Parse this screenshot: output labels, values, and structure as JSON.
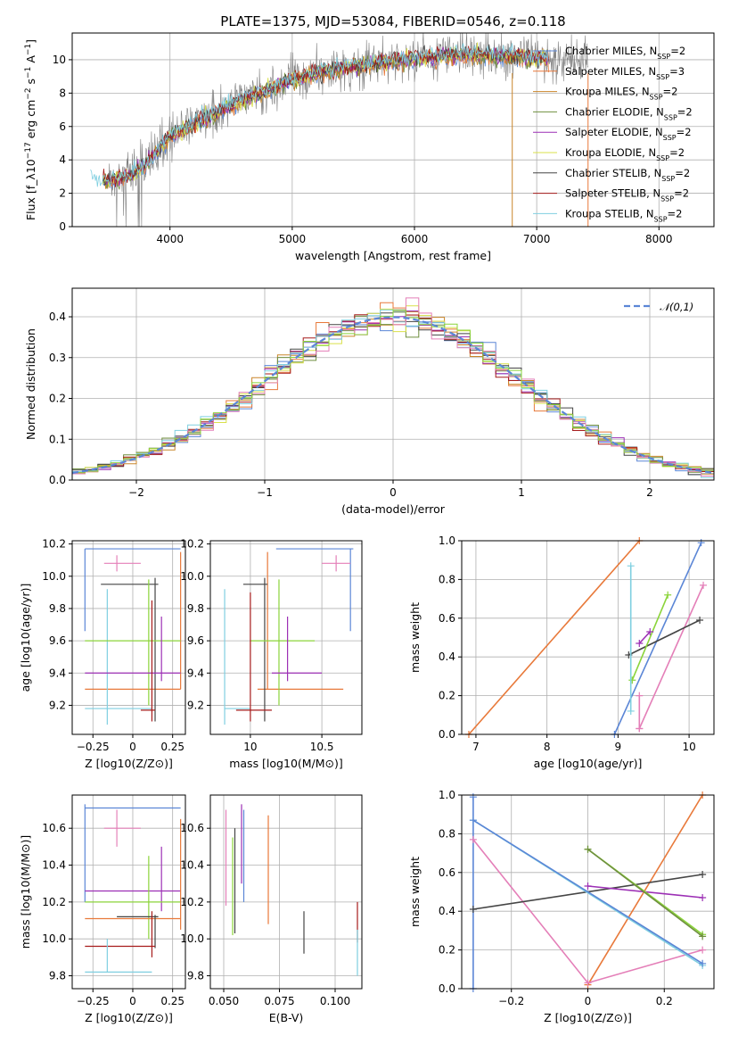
{
  "title": "PLATE=1375, MJD=53084, FIBERID=0546, z=0.118",
  "colors": {
    "Chabrier MILES": "#5b86d6",
    "Salpeter MILES": "#e8793a",
    "Kroupa MILES": "#c9852a",
    "Chabrier ELODIE": "#6f8f3f",
    "Salpeter ELODIE": "#9c2fb5",
    "Kroupa ELODIE": "#d9e04a",
    "Chabrier STELIB": "#454545",
    "Salpeter STELIB": "#a61b1b",
    "Kroupa STELIB": "#7fcfe0",
    "pink": "#e47fb8",
    "green": "#8bd43a",
    "normal_curve": "#5b86d6"
  },
  "chart_data": [
    {
      "id": "spectrum",
      "type": "line",
      "xlabel": "wavelength [Angstrom, rest frame]",
      "ylabel": "Flux [f_λ10^-17 erg cm^-2 s^-1 A^-1]",
      "xlim": [
        3200,
        8450
      ],
      "ylim": [
        0,
        11.6
      ],
      "xticks": [
        4000,
        5000,
        6000,
        7000,
        8000
      ],
      "yticks": [
        0,
        2,
        4,
        6,
        8,
        10
      ],
      "legend_position": "top-right",
      "legend": [
        {
          "name": "Chabrier MILES",
          "nssp": "2"
        },
        {
          "name": "Salpeter MILES",
          "nssp": "3"
        },
        {
          "name": "Kroupa MILES",
          "nssp": "2"
        },
        {
          "name": "Chabrier ELODIE",
          "nssp": "2"
        },
        {
          "name": "Salpeter ELODIE",
          "nssp": "2"
        },
        {
          "name": "Kroupa ELODIE",
          "nssp": "2"
        },
        {
          "name": "Chabrier STELIB",
          "nssp": "2"
        },
        {
          "name": "Salpeter STELIB",
          "nssp": "2"
        },
        {
          "name": "Kroupa STELIB",
          "nssp": "2"
        }
      ],
      "continuum": [
        [
          3350,
          2.9
        ],
        [
          3500,
          2.7
        ],
        [
          3650,
          3.0
        ],
        [
          3800,
          3.7
        ],
        [
          3900,
          4.6
        ],
        [
          4000,
          5.4
        ],
        [
          4200,
          6.2
        ],
        [
          4400,
          6.9
        ],
        [
          4600,
          7.6
        ],
        [
          4800,
          8.2
        ],
        [
          5000,
          8.8
        ],
        [
          5200,
          9.2
        ],
        [
          5400,
          9.5
        ],
        [
          5600,
          9.7
        ],
        [
          5800,
          9.9
        ],
        [
          6000,
          10.1
        ],
        [
          6200,
          10.2
        ],
        [
          6400,
          10.3
        ],
        [
          6600,
          10.3
        ],
        [
          6800,
          10.2
        ],
        [
          7000,
          10.1
        ],
        [
          7200,
          10.0
        ],
        [
          7420,
          10.0
        ]
      ],
      "model_end": 7100,
      "data_range": [
        3500,
        7420
      ]
    },
    {
      "id": "residuals",
      "type": "histogram",
      "xlabel": "(data-model)/error",
      "ylabel": "Normed distribution",
      "xlim": [
        -2.5,
        2.5
      ],
      "ylim": [
        0,
        0.47
      ],
      "xticks": [
        -2,
        -1,
        0,
        1,
        2
      ],
      "yticks": [
        0.0,
        0.1,
        0.2,
        0.3,
        0.4
      ],
      "legend": [
        "𝒩(0,1)"
      ],
      "legend_position": "top-right",
      "bin_width": 0.1,
      "bin_start": -2.5
    },
    {
      "id": "age-vs-Z",
      "type": "scatter",
      "xlabel": "Z [log10(Z/Z⊙)]",
      "ylabel": "age [log10(age/yr)]",
      "xlim": [
        -0.38,
        0.33
      ],
      "ylim": [
        9.02,
        10.22
      ],
      "xticks": [
        -0.25,
        0.0,
        0.25
      ],
      "yticks": [
        9.2,
        9.4,
        9.6,
        9.8,
        10.0,
        10.2
      ],
      "points": [
        {
          "c": "#5b86d6",
          "x": -0.3,
          "y": 10.17,
          "xlo": -0.3,
          "xhi": 0.3,
          "ylo": 9.66,
          "yhi": 10.17
        },
        {
          "c": "#e8793a",
          "x": 0.3,
          "y": 9.3,
          "xlo": -0.3,
          "xhi": 0.3,
          "ylo": 9.3,
          "yhi": 10.15
        },
        {
          "c": "#e47fb8",
          "x": -0.1,
          "y": 10.08,
          "xlo": -0.18,
          "xhi": 0.05,
          "ylo": 10.03,
          "yhi": 10.13
        },
        {
          "c": "#454545",
          "x": 0.14,
          "y": 9.95,
          "xlo": -0.2,
          "xhi": 0.16,
          "ylo": 9.1,
          "yhi": 9.99
        },
        {
          "c": "#7fcfe0",
          "x": -0.16,
          "y": 9.18,
          "xlo": -0.3,
          "xhi": 0.12,
          "ylo": 9.08,
          "yhi": 9.92
        },
        {
          "c": "#8bd43a",
          "x": 0.1,
          "y": 9.6,
          "xlo": -0.3,
          "xhi": 0.3,
          "ylo": 9.2,
          "yhi": 9.98
        },
        {
          "c": "#9c2fb5",
          "x": 0.18,
          "y": 9.4,
          "xlo": -0.3,
          "xhi": 0.3,
          "ylo": 9.35,
          "yhi": 9.75
        },
        {
          "c": "#a61b1b",
          "x": 0.12,
          "y": 9.17,
          "xlo": 0.05,
          "xhi": 0.14,
          "ylo": 9.1,
          "yhi": 9.85
        }
      ]
    },
    {
      "id": "age-vs-mass",
      "type": "scatter",
      "xlabel": "mass [log10(M/M⊙)]",
      "ylabel": "",
      "xlim": [
        9.72,
        10.78
      ],
      "ylim": [
        9.02,
        10.22
      ],
      "xticks": [
        10.0,
        10.5
      ],
      "yticks": [
        9.2,
        9.4,
        9.6,
        9.8,
        10.0,
        10.2
      ],
      "points": [
        {
          "c": "#5b86d6",
          "x": 10.7,
          "y": 10.17,
          "xlo": 10.18,
          "xhi": 10.72,
          "ylo": 9.66,
          "yhi": 10.17
        },
        {
          "c": "#e47fb8",
          "x": 10.6,
          "y": 10.08,
          "xlo": 10.5,
          "xhi": 10.7,
          "ylo": 10.03,
          "yhi": 10.13
        },
        {
          "c": "#e8793a",
          "x": 10.12,
          "y": 9.3,
          "xlo": 10.05,
          "xhi": 10.65,
          "ylo": 9.3,
          "yhi": 10.15
        },
        {
          "c": "#454545",
          "x": 10.1,
          "y": 9.95,
          "xlo": 9.95,
          "xhi": 10.12,
          "ylo": 9.1,
          "yhi": 9.99
        },
        {
          "c": "#7fcfe0",
          "x": 9.82,
          "y": 9.18,
          "xlo": 9.82,
          "xhi": 10.0,
          "ylo": 9.08,
          "yhi": 9.92
        },
        {
          "c": "#8bd43a",
          "x": 10.2,
          "y": 9.6,
          "xlo": 10.0,
          "xhi": 10.45,
          "ylo": 9.2,
          "yhi": 9.98
        },
        {
          "c": "#9c2fb5",
          "x": 10.26,
          "y": 9.4,
          "xlo": 10.15,
          "xhi": 10.5,
          "ylo": 9.35,
          "yhi": 9.75
        },
        {
          "c": "#a61b1b",
          "x": 10.0,
          "y": 9.17,
          "xlo": 9.9,
          "xhi": 10.15,
          "ylo": 9.1,
          "yhi": 9.9
        }
      ]
    },
    {
      "id": "weight-vs-age",
      "type": "line",
      "xlabel": "age [log10(age/yr)]",
      "ylabel": "mass weight",
      "xlim": [
        6.8,
        10.35
      ],
      "ylim": [
        0,
        1
      ],
      "xticks": [
        7,
        8,
        9,
        10
      ],
      "yticks": [
        0.0,
        0.2,
        0.4,
        0.6,
        0.8,
        1.0
      ],
      "series": [
        {
          "c": "#e8793a",
          "pts": [
            [
              6.9,
              0.0
            ],
            [
              9.3,
              1.0
            ]
          ]
        },
        {
          "c": "#5b86d6",
          "pts": [
            [
              8.95,
              0.0
            ],
            [
              10.17,
              0.99
            ]
          ]
        },
        {
          "c": "#e47fb8",
          "pts": [
            [
              9.3,
              0.03
            ],
            [
              10.2,
              0.77
            ]
          ]
        },
        {
          "c": "#454545",
          "pts": [
            [
              9.15,
              0.41
            ],
            [
              10.15,
              0.59
            ]
          ]
        },
        {
          "c": "#8bd43a",
          "pts": [
            [
              9.2,
              0.28
            ],
            [
              9.7,
              0.72
            ]
          ]
        },
        {
          "c": "#9c2fb5",
          "pts": [
            [
              9.3,
              0.47
            ],
            [
              9.45,
              0.53
            ]
          ]
        },
        {
          "c": "#7fcfe0",
          "pts": [
            [
              9.18,
              0.12
            ],
            [
              9.18,
              0.87
            ]
          ]
        },
        {
          "c": "#e47fb8",
          "pts": [
            [
              9.3,
              0.03
            ],
            [
              9.3,
              0.2
            ]
          ]
        }
      ]
    },
    {
      "id": "mass-vs-Z",
      "type": "scatter",
      "xlabel": "Z [log10(Z/Z⊙)]",
      "ylabel": "mass [log10(M/M⊙)]",
      "xlim": [
        -0.38,
        0.33
      ],
      "ylim": [
        9.73,
        10.78
      ],
      "xticks": [
        -0.25,
        0.0,
        0.25
      ],
      "yticks": [
        9.8,
        10.0,
        10.2,
        10.4,
        10.6
      ],
      "points": [
        {
          "c": "#5b86d6",
          "x": -0.3,
          "y": 10.71,
          "xlo": -0.3,
          "xhi": 0.3,
          "ylo": 10.2,
          "yhi": 10.73
        },
        {
          "c": "#e47fb8",
          "x": -0.1,
          "y": 10.6,
          "xlo": -0.18,
          "xhi": 0.05,
          "ylo": 10.5,
          "yhi": 10.7
        },
        {
          "c": "#9c2fb5",
          "x": 0.18,
          "y": 10.26,
          "xlo": -0.3,
          "xhi": 0.3,
          "ylo": 10.15,
          "yhi": 10.5
        },
        {
          "c": "#8bd43a",
          "x": 0.1,
          "y": 10.2,
          "xlo": -0.3,
          "xhi": 0.3,
          "ylo": 10.0,
          "yhi": 10.45
        },
        {
          "c": "#e8793a",
          "x": 0.3,
          "y": 10.11,
          "xlo": -0.3,
          "xhi": 0.3,
          "ylo": 10.05,
          "yhi": 10.65
        },
        {
          "c": "#454545",
          "x": 0.14,
          "y": 10.12,
          "xlo": -0.1,
          "xhi": 0.16,
          "ylo": 9.95,
          "yhi": 10.13
        },
        {
          "c": "#a61b1b",
          "x": 0.12,
          "y": 9.96,
          "xlo": -0.3,
          "xhi": 0.14,
          "ylo": 9.9,
          "yhi": 10.15
        },
        {
          "c": "#7fcfe0",
          "x": -0.16,
          "y": 9.82,
          "xlo": -0.3,
          "xhi": 0.12,
          "ylo": 9.82,
          "yhi": 10.0
        }
      ]
    },
    {
      "id": "mass-vs-ebv",
      "type": "scatter",
      "xlabel": "E(B-V)",
      "ylabel": "",
      "xlim": [
        0.044,
        0.112
      ],
      "ylim": [
        9.73,
        10.78
      ],
      "xticks": [
        0.05,
        0.075,
        0.1
      ],
      "xticklabels": [
        "0.050",
        "0.075",
        "0.100"
      ],
      "yticks": [
        9.8,
        10.0,
        10.2,
        10.4,
        10.6
      ],
      "bars": [
        {
          "c": "#e47fb8",
          "x": 0.051,
          "ylo": 10.18,
          "yhi": 10.7
        },
        {
          "c": "#8bd43a",
          "x": 0.054,
          "ylo": 10.02,
          "yhi": 10.55
        },
        {
          "c": "#454545",
          "x": 0.055,
          "ylo": 10.03,
          "yhi": 10.6
        },
        {
          "c": "#9c2fb5",
          "x": 0.058,
          "ylo": 10.3,
          "yhi": 10.73
        },
        {
          "c": "#5b86d6",
          "x": 0.059,
          "ylo": 10.2,
          "yhi": 10.7
        },
        {
          "c": "#e8793a",
          "x": 0.07,
          "ylo": 10.08,
          "yhi": 10.67
        },
        {
          "c": "#454545",
          "x": 0.086,
          "ylo": 9.92,
          "yhi": 10.15
        },
        {
          "c": "#a61b1b",
          "x": 0.11,
          "ylo": 9.98,
          "yhi": 10.2
        },
        {
          "c": "#7fcfe0",
          "x": 0.11,
          "ylo": 9.8,
          "yhi": 10.05
        }
      ]
    },
    {
      "id": "weight-vs-Z",
      "type": "line",
      "xlabel": "Z [log10(Z/Z⊙)]",
      "ylabel": "mass weight",
      "xlim": [
        -0.33,
        0.33
      ],
      "ylim": [
        0,
        1
      ],
      "xticks": [
        -0.2,
        0.0,
        0.2
      ],
      "yticks": [
        0.0,
        0.2,
        0.4,
        0.6,
        0.8,
        1.0
      ],
      "series": [
        {
          "c": "#5b86d6",
          "pts": [
            [
              -0.3,
              0.0
            ],
            [
              -0.3,
              0.99
            ]
          ]
        },
        {
          "c": "#e8793a",
          "pts": [
            [
              0.0,
              0.02
            ],
            [
              0.3,
              1.0
            ]
          ]
        },
        {
          "c": "#e47fb8",
          "pts": [
            [
              -0.3,
              0.77
            ],
            [
              0.0,
              0.03
            ],
            [
              0.3,
              0.2
            ]
          ]
        },
        {
          "c": "#454545",
          "pts": [
            [
              -0.3,
              0.41
            ],
            [
              0.3,
              0.59
            ]
          ]
        },
        {
          "c": "#9c2fb5",
          "pts": [
            [
              0.0,
              0.53
            ],
            [
              0.3,
              0.47
            ]
          ]
        },
        {
          "c": "#8bd43a",
          "pts": [
            [
              0.0,
              0.72
            ],
            [
              0.3,
              0.28
            ]
          ]
        },
        {
          "c": "#6f8f3f",
          "pts": [
            [
              0.0,
              0.72
            ],
            [
              0.3,
              0.27
            ]
          ]
        },
        {
          "c": "#7fcfe0",
          "pts": [
            [
              -0.3,
              0.87
            ],
            [
              0.3,
              0.12
            ]
          ]
        },
        {
          "c": "#5b86d6",
          "pts": [
            [
              -0.3,
              0.87
            ],
            [
              0.3,
              0.13
            ]
          ]
        }
      ]
    }
  ]
}
